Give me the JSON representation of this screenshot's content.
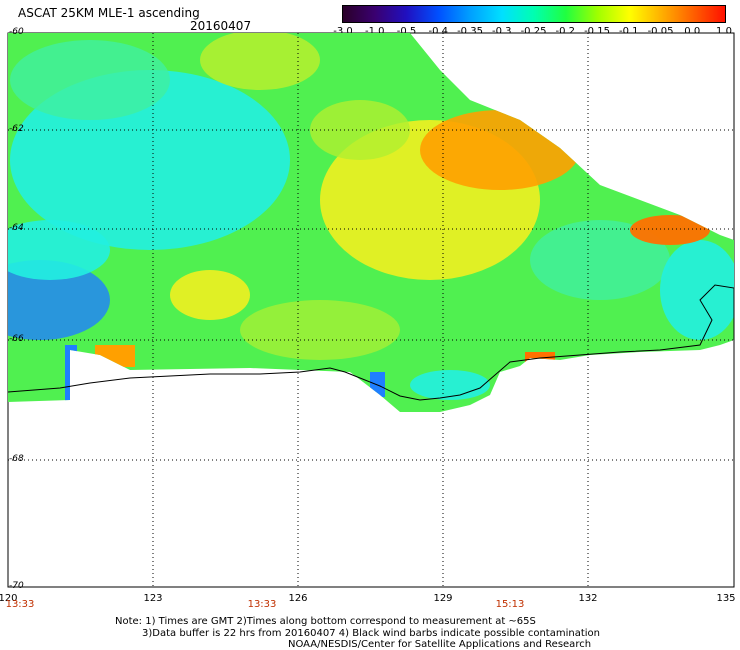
{
  "header": {
    "title": "ASCAT 25KM MLE-1 ascending",
    "date": "20160407"
  },
  "colorbar": {
    "ticks": [
      "-3.0",
      "-1.0",
      "-0.5",
      "-0.4",
      "-0.35",
      "-0.3",
      "-0.25",
      "-0.2",
      "-0.15",
      "-0.1",
      "-0.05",
      "0.0",
      "1.0"
    ],
    "colors": [
      "#2a0028",
      "#3a0070",
      "#2010c0",
      "#0050ff",
      "#00a0ff",
      "#00e0ff",
      "#00ffb0",
      "#20ff40",
      "#a0ff00",
      "#ffff00",
      "#ffb000",
      "#ff6000",
      "#ff1000"
    ]
  },
  "map": {
    "lat_labels": [
      "-60",
      "-62",
      "-64",
      "-66",
      "-68",
      "-70"
    ],
    "lon_labels": [
      "120",
      "123",
      "126",
      "129",
      "132",
      "135"
    ],
    "time_labels": [
      "13:33",
      "13:33",
      "15:13"
    ],
    "field_colors": {
      "land": "#ffffff",
      "cyan": "#22f0e0",
      "teal": "#40f0a0",
      "green": "#50f050",
      "lime": "#b0f030",
      "yellow": "#f0f020",
      "orange": "#ffa000",
      "darkorange": "#ff7000",
      "blue": "#1f7fff",
      "coast": "#000000"
    }
  },
  "notes": {
    "line1": "Note: 1) Times are GMT 2)Times along bottom correspond to measurement at ~65S",
    "line2": "3)Data buffer is 22 hrs from 20160407 4) Black wind barbs indicate possible contamination",
    "line3": "NOAA/NESDIS/Center for Satellite Applications and Research"
  }
}
